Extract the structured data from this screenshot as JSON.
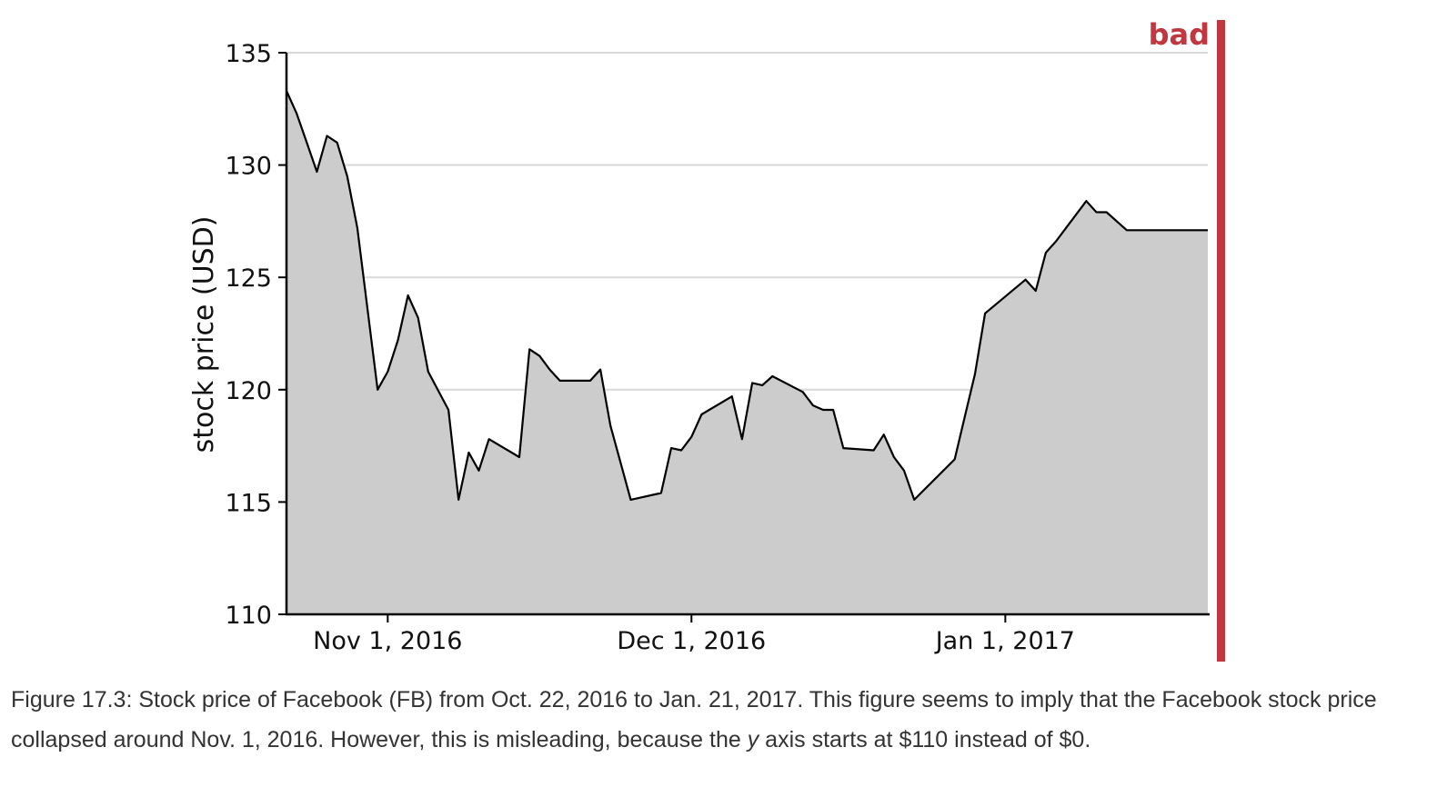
{
  "badge": {
    "label": "bad",
    "color": "#c1373f"
  },
  "caption": {
    "part1": "Figure 17.3: Stock price of Facebook (FB) from Oct. 22, 2016 to Jan. 21, 2017. This figure seems to imply that the Facebook stock price collapsed around Nov. 1, 2016. However, this is misleading, because the ",
    "italic": "y",
    "part2": " axis starts at $110 instead of $0."
  },
  "chart_data": {
    "type": "area",
    "title": "",
    "xlabel": "",
    "ylabel": "stock price (USD)",
    "xlim": [
      "2016-10-22",
      "2017-01-21"
    ],
    "ylim": [
      110,
      135
    ],
    "yticks": [
      110,
      115,
      120,
      125,
      130,
      135
    ],
    "xticks": [
      {
        "date": "2016-11-01",
        "label": "Nov 1, 2016"
      },
      {
        "date": "2016-12-01",
        "label": "Dec 1, 2016"
      },
      {
        "date": "2017-01-01",
        "label": "Jan 1, 2017"
      }
    ],
    "grid": "horizontal",
    "fill_color": "#cccccc",
    "line_color": "#000000",
    "series": [
      {
        "x": [
          "2016-10-22",
          "2016-10-23",
          "2016-10-24",
          "2016-10-25",
          "2016-10-26",
          "2016-10-27",
          "2016-10-28",
          "2016-10-29",
          "2016-10-31",
          "2016-11-01",
          "2016-11-02",
          "2016-11-03",
          "2016-11-04",
          "2016-11-05",
          "2016-11-07",
          "2016-11-08",
          "2016-11-09",
          "2016-11-10",
          "2016-11-11",
          "2016-11-14",
          "2016-11-15",
          "2016-11-16",
          "2016-11-17",
          "2016-11-18",
          "2016-11-21",
          "2016-11-22",
          "2016-11-23",
          "2016-11-25",
          "2016-11-28",
          "2016-11-29",
          "2016-11-30",
          "2016-12-01",
          "2016-12-02",
          "2016-12-05",
          "2016-12-06",
          "2016-12-07",
          "2016-12-08",
          "2016-12-09",
          "2016-12-12",
          "2016-12-13",
          "2016-12-14",
          "2016-12-15",
          "2016-12-16",
          "2016-12-19",
          "2016-12-20",
          "2016-12-21",
          "2016-12-22",
          "2016-12-23",
          "2016-12-27",
          "2016-12-28",
          "2016-12-29",
          "2016-12-30",
          "2017-01-03",
          "2017-01-04",
          "2017-01-05",
          "2017-01-06",
          "2017-01-09",
          "2017-01-10",
          "2017-01-11",
          "2017-01-12",
          "2017-01-13",
          "2017-01-17",
          "2017-01-18",
          "2017-01-19",
          "2017-01-20",
          "2017-01-21"
        ],
        "y": [
          133.3,
          132.3,
          131.0,
          129.7,
          131.3,
          131.0,
          129.5,
          127.2,
          120.0,
          120.8,
          122.2,
          124.2,
          123.2,
          120.8,
          119.1,
          115.1,
          117.2,
          116.4,
          117.8,
          117.0,
          121.8,
          121.5,
          120.9,
          120.4,
          120.4,
          120.9,
          118.4,
          115.1,
          115.4,
          117.4,
          117.3,
          117.9,
          118.9,
          119.7,
          117.8,
          120.3,
          120.2,
          120.6,
          119.9,
          119.3,
          119.1,
          119.1,
          117.4,
          117.3,
          118.0,
          117.0,
          116.4,
          115.1,
          116.9,
          118.8,
          120.7,
          123.4,
          124.9,
          124.4,
          126.1,
          126.6,
          128.4,
          127.9,
          127.9,
          127.5,
          127.1,
          127.1,
          127.1,
          127.1,
          127.1,
          127.1
        ]
      }
    ]
  }
}
